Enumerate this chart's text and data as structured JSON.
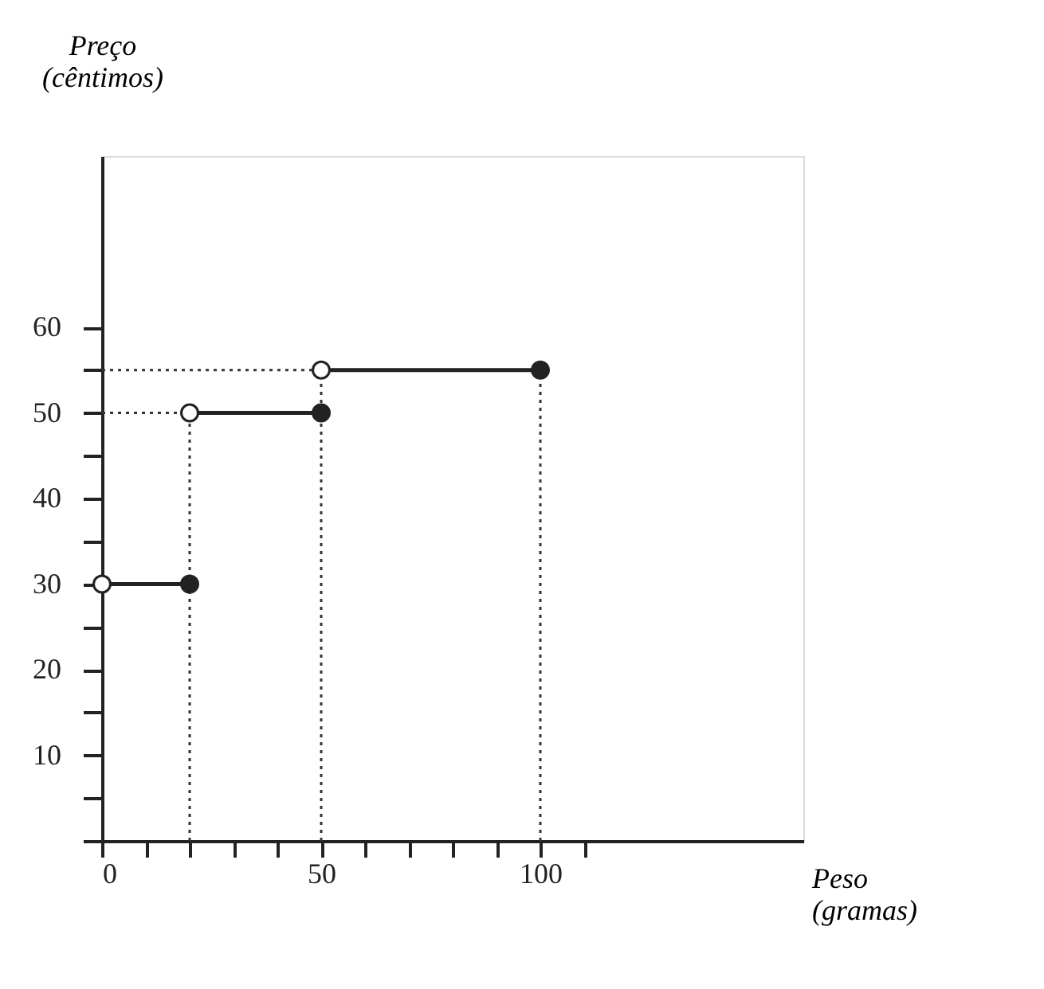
{
  "chart_data": {
    "type": "line",
    "xlabel": "Peso (gramas)",
    "ylabel": "Preço (cêntimos)",
    "xlim": [
      0,
      160
    ],
    "ylim": [
      0,
      80
    ],
    "xticks": [
      0,
      {
        "value": 10,
        "label": null
      },
      {
        "value": 20,
        "label": null
      },
      {
        "value": 30,
        "label": null
      },
      {
        "value": 40,
        "label": null
      },
      50,
      {
        "value": 60,
        "label": null
      },
      {
        "value": 70,
        "label": null
      },
      {
        "value": 80,
        "label": null
      },
      {
        "value": 90,
        "label": null
      },
      100,
      {
        "value": 110,
        "label": null
      }
    ],
    "yticks": [
      {
        "value": 0,
        "label": null
      },
      {
        "value": 5,
        "label": null
      },
      10,
      {
        "value": 15,
        "label": null
      },
      20,
      {
        "value": 25,
        "label": null
      },
      30,
      {
        "value": 35,
        "label": null
      },
      40,
      {
        "value": 45,
        "label": null
      },
      50,
      {
        "value": 55,
        "label": null
      },
      60
    ],
    "grid": false,
    "series": [
      {
        "line_style": "dotted",
        "color": "#333333",
        "x": [
          20,
          20
        ],
        "values": [
          0,
          50
        ]
      },
      {
        "line_style": "dotted",
        "color": "#333333",
        "x": [
          0,
          20
        ],
        "values": [
          50,
          50
        ]
      },
      {
        "line_style": "dotted",
        "color": "#333333",
        "x": [
          0,
          50
        ],
        "values": [
          55,
          55
        ]
      },
      {
        "line_style": "dotted",
        "color": "#333333",
        "x": [
          50,
          50
        ],
        "values": [
          0,
          55
        ]
      },
      {
        "line_style": "dotted",
        "color": "#333333",
        "x": [
          100,
          100
        ],
        "values": [
          0,
          55
        ]
      },
      {
        "line_style": "solid",
        "color": "#222222",
        "x": [
          0,
          20
        ],
        "values": [
          30,
          30
        ]
      },
      {
        "line_style": "solid",
        "color": "#222222",
        "x": [
          20,
          50
        ],
        "values": [
          50,
          50
        ]
      },
      {
        "line_style": "solid",
        "color": "#222222",
        "x": [
          50,
          100
        ],
        "values": [
          55,
          55
        ]
      },
      {
        "type": "scatter",
        "marker": "circle",
        "color": "#ffffff",
        "x": [
          0,
          20,
          50
        ],
        "values": [
          30,
          50,
          55
        ]
      },
      {
        "type": "scatter",
        "marker": "circle",
        "color": "#222222",
        "x": [
          20,
          50,
          100
        ],
        "values": [
          30,
          50,
          55
        ]
      }
    ]
  }
}
